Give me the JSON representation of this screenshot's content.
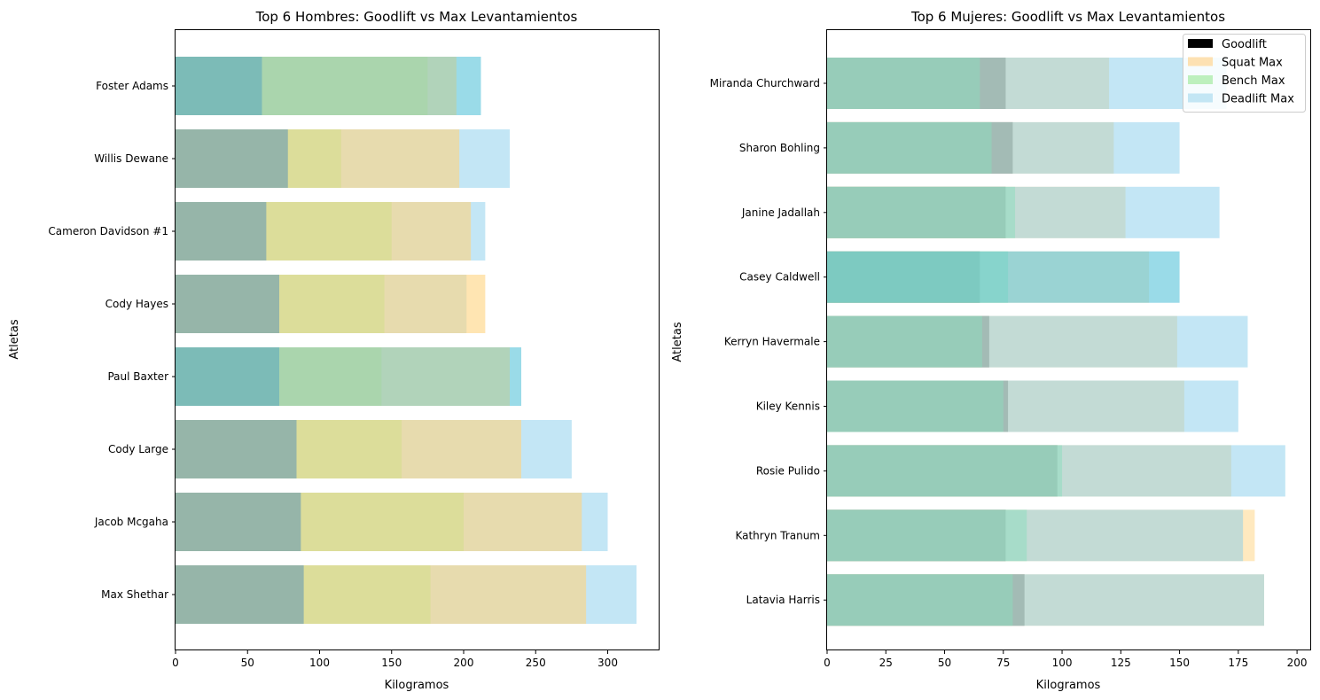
{
  "chart_data": [
    {
      "type": "bar",
      "orientation": "horizontal",
      "stacked": false,
      "overlay": true,
      "title": "Top 6 Hombres: Goodlift vs Max Levantamientos",
      "xlabel": "Kilogramos",
      "ylabel": "Atletas",
      "xlim": [
        0,
        336
      ],
      "xticks": [
        0,
        50,
        100,
        150,
        200,
        250,
        300
      ],
      "grid": false,
      "categories": [
        "Foster Adams",
        "Willis Dewane",
        "Cameron Davidson #1",
        "Cody Hayes",
        "Paul Baxter",
        "Cody Large",
        "Jacob Mcgaha",
        "Max Shethar"
      ],
      "series": [
        {
          "name": "Deadlift Max",
          "color": "#87ceeb",
          "opacity": 0.5,
          "values": [
            212,
            232,
            215,
            202,
            240,
            275,
            300,
            320
          ]
        },
        {
          "name": "Bench Max",
          "color": "#90ee90",
          "opacity": 0.5,
          "values": [
            175,
            115,
            150,
            145,
            143,
            157,
            200,
            177
          ]
        },
        {
          "name": "Squat Max",
          "color": "#ffd37f",
          "opacity": 0.6,
          "values": [
            195,
            197,
            205,
            215,
            232,
            240,
            282,
            285
          ]
        },
        {
          "name": "Goodlift",
          "color": "#000000",
          "opacity": 0.0,
          "values": [
            60,
            78,
            63,
            72,
            72,
            84,
            87,
            89
          ]
        }
      ],
      "visual_layers": {
        "goodlift_overlay": {
          "color": "#4dbab6",
          "values": [
            60,
            78,
            63,
            72,
            72,
            84,
            87,
            89
          ]
        },
        "cyan_tints": [
          0,
          4
        ]
      }
    },
    {
      "type": "bar",
      "orientation": "horizontal",
      "stacked": false,
      "overlay": true,
      "title": "Top 6 Mujeres: Goodlift vs Max Levantamientos",
      "xlabel": "Kilogramos",
      "ylabel": "Atletas",
      "xlim": [
        0,
        206
      ],
      "xticks": [
        0,
        25,
        50,
        75,
        100,
        125,
        150,
        175,
        200
      ],
      "grid": false,
      "legend": {
        "position": "top-right",
        "entries": [
          "Goodlift",
          "Squat Max",
          "Bench Max",
          "Deadlift Max"
        ]
      },
      "categories": [
        "Miranda Churchward",
        "Sharon Bohling",
        "Janine Jadallah",
        "Casey Caldwell",
        "Kerryn Havermale",
        "Kiley Kennis",
        "Rosie Pulido",
        "Kathryn Tranum",
        "Latavia Harris"
      ],
      "series": [
        {
          "name": "Goodlift",
          "color": "#000000",
          "values": [
            76,
            79,
            76,
            65,
            69,
            77,
            98,
            76,
            84
          ]
        },
        {
          "name": "Squat Max",
          "color": "#ffd37f",
          "values": [
            120,
            122,
            127,
            137,
            149,
            152,
            172,
            182,
            186
          ]
        },
        {
          "name": "Bench Max",
          "color": "#90ee90",
          "values": [
            65,
            70,
            80,
            77,
            66,
            75,
            100,
            85,
            79
          ]
        },
        {
          "name": "Deadlift Max",
          "color": "#87ceeb",
          "values": [
            170,
            150,
            167,
            150,
            179,
            175,
            195,
            177,
            186
          ]
        }
      ],
      "visual_layers": {
        "cyan_tints": [
          3
        ]
      }
    }
  ],
  "legend_colors": {
    "Goodlift": "#000000",
    "Squat Max": "#fde1b2",
    "Bench Max": "#bdf0bd",
    "Deadlift Max": "#c3e6f4"
  }
}
